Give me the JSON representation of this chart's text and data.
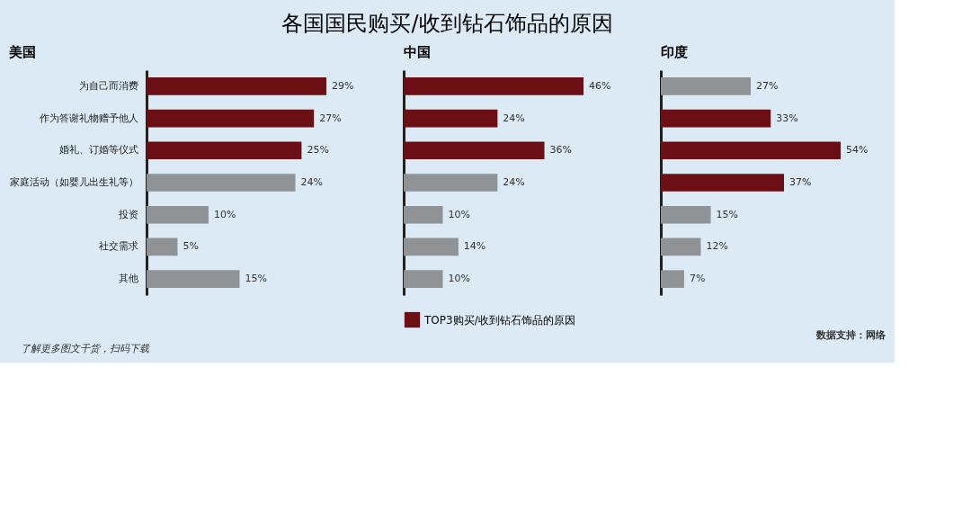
{
  "chart_data": [
    {
      "type": "bar",
      "orientation": "horizontal",
      "title": "各国国民购买/收到钻石饰品的原因",
      "subtitle": "美国",
      "categories": [
        "为自己而消费",
        "作为答谢礼物赠予他人",
        "婚礼、订婚等仪式",
        "家庭活动（如婴儿出生礼等）",
        "投资",
        "社交需求",
        "其他"
      ],
      "tick_labels": "y",
      "grid": false,
      "series": [
        {
          "color": "#6b0f14",
          "values": [
            29,
            27,
            25,
            null,
            null,
            null,
            null
          ],
          "value_labels": [
            "29%",
            "27%",
            "25%",
            null,
            null,
            null,
            null
          ]
        },
        {
          "color": "#8f9396",
          "values": [
            null,
            null,
            null,
            24,
            10,
            5,
            15
          ],
          "value_labels": [
            null,
            null,
            null,
            "24%",
            "10%",
            "5%",
            "15%"
          ]
        }
      ],
      "annotations": [
        "了解更多图文干货，扫码下载"
      ]
    },
    {
      "type": "bar",
      "orientation": "horizontal",
      "subtitle": "中国",
      "tick_labels": false,
      "grid": false,
      "legend": "bottom",
      "series": [
        {
          "name": "TOP3购买/收到钻石饰品的原因",
          "color": "#6b0f14",
          "values": [
            46,
            24,
            36,
            null,
            null,
            null,
            null
          ],
          "value_labels": [
            "46%",
            "24%",
            "36%",
            null,
            null,
            null,
            null
          ]
        },
        {
          "color": "#8f9396",
          "values": [
            null,
            null,
            null,
            24,
            10,
            14,
            10
          ],
          "value_labels": [
            null,
            null,
            null,
            "24%",
            "10%",
            "14%",
            "10%"
          ]
        }
      ]
    },
    {
      "type": "bar",
      "orientation": "horizontal",
      "subtitle": "印度",
      "tick_labels": false,
      "grid": false,
      "series": [
        {
          "color": "#6b0f14",
          "values": [
            null,
            33,
            54,
            37,
            null,
            null,
            null
          ],
          "value_labels": [
            null,
            "33%",
            "54%",
            "37%",
            null,
            null,
            null
          ]
        },
        {
          "color": "#8f9396",
          "values": [
            27,
            null,
            null,
            null,
            15,
            12,
            7
          ],
          "value_labels": [
            "27%",
            null,
            null,
            null,
            "15%",
            "12%",
            "7%"
          ]
        }
      ],
      "annotations": [
        "数据支持：网络"
      ]
    }
  ]
}
